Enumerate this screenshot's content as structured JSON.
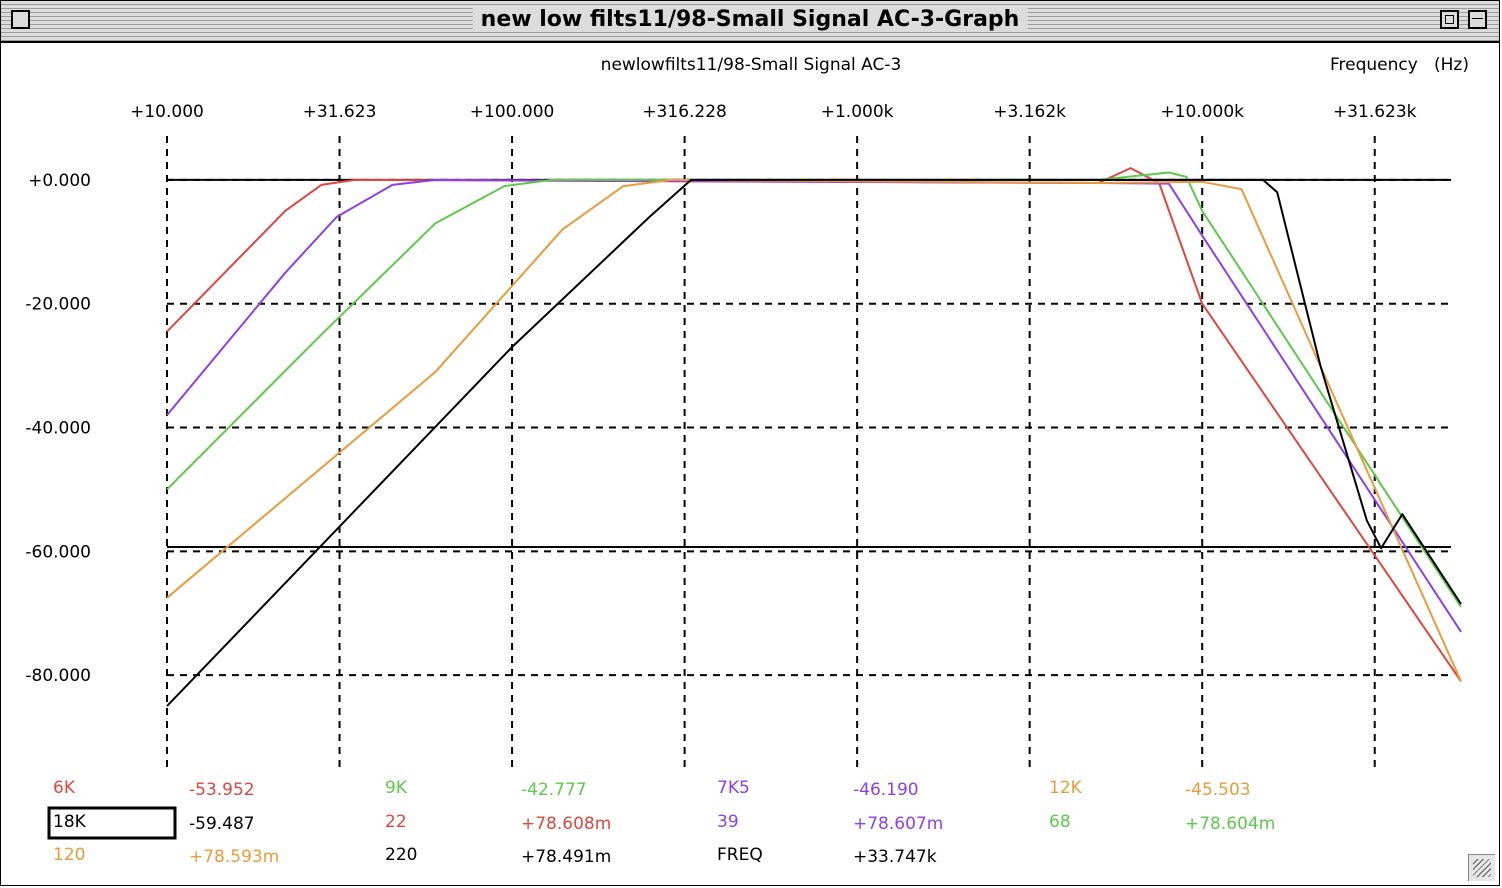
{
  "window": {
    "title": "new low filts11/98-Small Signal AC-3-Graph"
  },
  "chart_data": {
    "type": "line",
    "title": "newlowfilts11/98-Small Signal AC-3",
    "xlabel": "Frequency   (Hz)",
    "ylabel": "",
    "xscale": "log",
    "xlim": [
      10,
      56234
    ],
    "ylim": [
      -95,
      10
    ],
    "x_ticks": [
      10,
      31.623,
      100,
      316.228,
      1000,
      3162,
      10000,
      31623
    ],
    "x_tick_labels": [
      "+10.000",
      "+31.623",
      "+100.000",
      "+316.228",
      "+1.000k",
      "+3.162k",
      "+10.000k",
      "+31.623k"
    ],
    "y_ticks": [
      0,
      -20,
      -40,
      -60,
      -80
    ],
    "y_tick_labels": [
      "+0.000",
      "-20.000",
      "-40.000",
      "-60.000",
      "-80.000"
    ],
    "grid": true,
    "reference_lines": [
      0,
      -59.3
    ],
    "series": [
      {
        "name": "6K",
        "color": "#e0463e",
        "points": [
          [
            10,
            -24.5
          ],
          [
            22,
            -5
          ],
          [
            28,
            -0.8
          ],
          [
            35,
            0
          ],
          [
            5000,
            -0.5
          ],
          [
            6200,
            1.9
          ],
          [
            7500,
            -0.5
          ],
          [
            10000,
            -20
          ],
          [
            56234,
            -81
          ]
        ]
      },
      {
        "name": "7K5",
        "color": "#8b3ff0",
        "points": [
          [
            10,
            -38
          ],
          [
            22,
            -15
          ],
          [
            31,
            -6
          ],
          [
            45,
            -0.8
          ],
          [
            60,
            0
          ],
          [
            5000,
            -0.5
          ],
          [
            8000,
            -0.6
          ],
          [
            10000,
            -9
          ],
          [
            56234,
            -73
          ]
        ]
      },
      {
        "name": "9K",
        "color": "#5cc94a",
        "points": [
          [
            10,
            -50
          ],
          [
            28,
            -25
          ],
          [
            60,
            -7
          ],
          [
            95,
            -1
          ],
          [
            130,
            0
          ],
          [
            5000,
            0
          ],
          [
            8000,
            1.2
          ],
          [
            9000,
            0.5
          ],
          [
            10000,
            -5
          ],
          [
            56234,
            -69
          ]
        ]
      },
      {
        "name": "12K",
        "color": "#eb9a3c",
        "points": [
          [
            10,
            -67.5
          ],
          [
            60,
            -31
          ],
          [
            140,
            -8
          ],
          [
            210,
            -1
          ],
          [
            290,
            0
          ],
          [
            5000,
            -0.5
          ],
          [
            10000,
            -0.3
          ],
          [
            13000,
            -1.5
          ],
          [
            56234,
            -81
          ]
        ]
      },
      {
        "name": "18K",
        "color": "#000000",
        "points": [
          [
            10,
            -85
          ],
          [
            100,
            -27
          ],
          [
            250,
            -6
          ],
          [
            330,
            0
          ],
          [
            5000,
            0
          ],
          [
            15000,
            0
          ],
          [
            16500,
            -2
          ],
          [
            22000,
            -30
          ],
          [
            30000,
            -55
          ],
          [
            33000,
            -59.5
          ],
          [
            38000,
            -54
          ],
          [
            56234,
            -68.5
          ]
        ]
      }
    ],
    "readouts": [
      {
        "label": "6K",
        "value": "-53.952",
        "color": "#e0463e"
      },
      {
        "label": "9K",
        "value": "-42.777",
        "color": "#5cc94a"
      },
      {
        "label": "7K5",
        "value": "-46.190",
        "color": "#8b3ff0"
      },
      {
        "label": "12K",
        "value": "-45.503",
        "color": "#eb9a3c"
      },
      {
        "label": "18K",
        "value": "-59.487",
        "color": "#000000",
        "selected": true
      },
      {
        "label": "22",
        "value": "+78.608m",
        "color": "#e0463e"
      },
      {
        "label": "39",
        "value": "+78.607m",
        "color": "#8b3ff0"
      },
      {
        "label": "68",
        "value": "+78.604m",
        "color": "#5cc94a"
      },
      {
        "label": "120",
        "value": "+78.593m",
        "color": "#eb9a3c"
      },
      {
        "label": "220",
        "value": "+78.491m",
        "color": "#000000"
      },
      {
        "label": "FREQ",
        "value": "+33.747k",
        "color": "#000000"
      }
    ]
  }
}
